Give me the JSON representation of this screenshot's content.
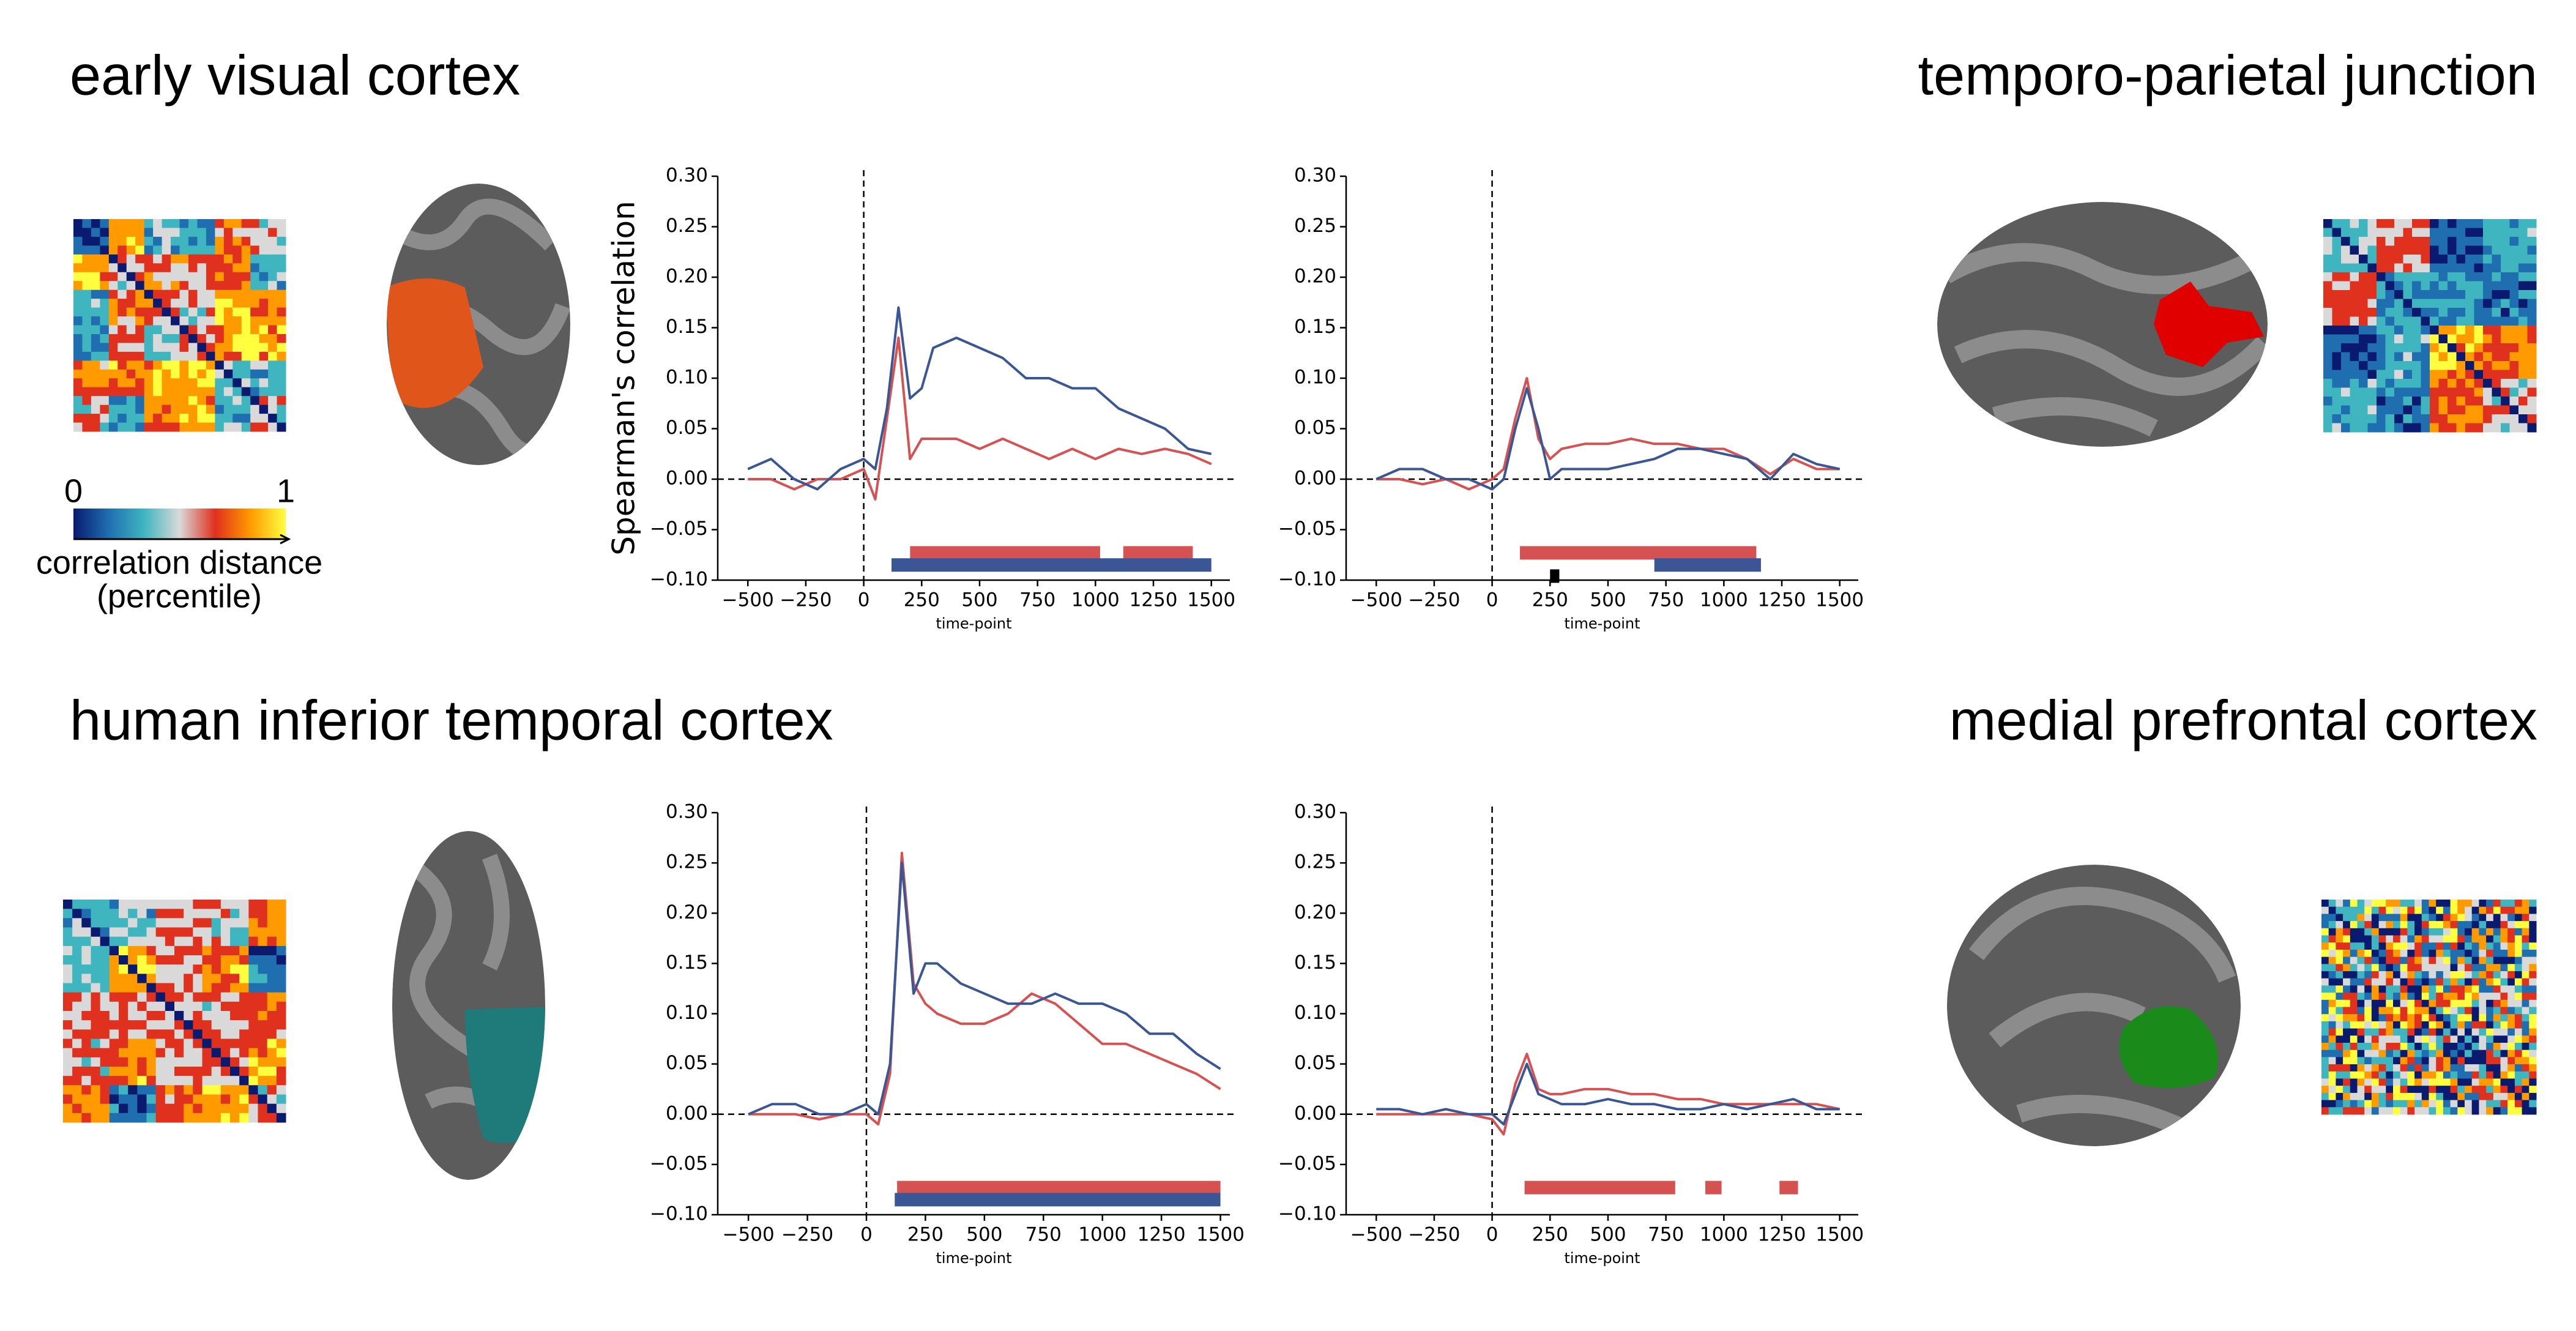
{
  "chart_data": [
    {
      "type": "line",
      "title": "early visual cortex",
      "y_label": "Spearman's correlation",
      "x_label": "time-point",
      "x": [
        -500,
        -400,
        -300,
        -200,
        -100,
        0,
        50,
        100,
        150,
        200,
        250,
        300,
        400,
        500,
        600,
        700,
        800,
        900,
        1000,
        1100,
        1200,
        1300,
        1400,
        1500
      ],
      "series": [
        {
          "color": "#d65252",
          "values": [
            0.0,
            0.0,
            -0.01,
            0.0,
            0.0,
            0.01,
            -0.02,
            0.06,
            0.14,
            0.02,
            0.04,
            0.04,
            0.04,
            0.03,
            0.04,
            0.03,
            0.02,
            0.03,
            0.02,
            0.03,
            0.025,
            0.03,
            0.025,
            0.015
          ]
        },
        {
          "color": "#3a5694",
          "values": [
            0.01,
            0.02,
            0.0,
            -0.01,
            0.01,
            0.02,
            0.01,
            0.07,
            0.17,
            0.08,
            0.09,
            0.13,
            0.14,
            0.13,
            0.12,
            0.1,
            0.1,
            0.09,
            0.09,
            0.07,
            0.06,
            0.05,
            0.03,
            0.025
          ]
        }
      ],
      "significance": [
        {
          "color": "#d65252",
          "intervals": [
            [
              200,
              1020
            ],
            [
              1120,
              1420
            ]
          ]
        },
        {
          "color": "#3a5694",
          "intervals": [
            [
              120,
              1500
            ]
          ]
        }
      ],
      "hline": 0,
      "vline": 0,
      "xlim": [
        -630,
        1580
      ],
      "ylim": [
        -0.1,
        0.3
      ],
      "xticks": [
        {
          "value": -500,
          "label": "−500"
        },
        {
          "value": -250,
          "label": "−250"
        },
        0,
        250,
        500,
        750,
        1000,
        1250,
        1500
      ],
      "yticks": [
        {
          "value": -0.1,
          "label": "−0.10"
        },
        {
          "value": -0.05,
          "label": "−0.05"
        },
        {
          "value": 0,
          "label": "0.00"
        },
        0.05,
        {
          "value": 0.1,
          "label": "0.10"
        },
        0.15,
        {
          "value": 0.2,
          "label": "0.20"
        },
        0.25,
        {
          "value": 0.3,
          "label": "0.30"
        }
      ]
    },
    {
      "type": "line",
      "title": "temporo-parietal junction",
      "x_label": "time-point",
      "x": [
        -500,
        -400,
        -300,
        -200,
        -100,
        0,
        50,
        100,
        150,
        200,
        250,
        300,
        400,
        500,
        600,
        700,
        800,
        900,
        1000,
        1100,
        1200,
        1300,
        1400,
        1500
      ],
      "series": [
        {
          "color": "#d65252",
          "values": [
            0.0,
            0.0,
            -0.005,
            0.0,
            -0.01,
            0.0,
            0.01,
            0.06,
            0.1,
            0.04,
            0.02,
            0.03,
            0.035,
            0.035,
            0.04,
            0.035,
            0.035,
            0.03,
            0.03,
            0.02,
            0.005,
            0.02,
            0.01,
            0.01
          ]
        },
        {
          "color": "#3a5694",
          "values": [
            0.0,
            0.01,
            0.01,
            0.0,
            0.0,
            -0.01,
            0.0,
            0.05,
            0.09,
            0.05,
            0.0,
            0.01,
            0.01,
            0.01,
            0.015,
            0.02,
            0.03,
            0.03,
            0.025,
            0.02,
            0.0,
            0.025,
            0.015,
            0.01
          ]
        }
      ],
      "significance": [
        {
          "color": "#d65252",
          "intervals": [
            [
              120,
              1140
            ]
          ]
        },
        {
          "color": "#3a5694",
          "intervals": [
            [
              700,
              1160
            ]
          ]
        },
        {
          "color": "#000000",
          "intervals": [
            [
              250,
              290
            ]
          ]
        }
      ],
      "hline": 0,
      "vline": 0,
      "xlim": [
        -630,
        1580
      ],
      "ylim": [
        -0.1,
        0.3
      ],
      "xticks": [
        {
          "value": -500,
          "label": "−500"
        },
        {
          "value": -250,
          "label": "−250"
        },
        0,
        250,
        500,
        750,
        1000,
        1250,
        1500
      ],
      "yticks": [
        {
          "value": -0.1,
          "label": "−0.10"
        },
        {
          "value": -0.05,
          "label": "−0.05"
        },
        {
          "value": 0,
          "label": "0.00"
        },
        0.05,
        {
          "value": 0.1,
          "label": "0.10"
        },
        0.15,
        {
          "value": 0.2,
          "label": "0.20"
        },
        0.25,
        {
          "value": 0.3,
          "label": "0.30"
        }
      ]
    },
    {
      "type": "line",
      "title": "human inferior temporal cortex",
      "x_label": "time-point",
      "x": [
        -500,
        -400,
        -300,
        -200,
        -100,
        0,
        50,
        100,
        150,
        200,
        250,
        300,
        400,
        500,
        600,
        700,
        800,
        900,
        1000,
        1100,
        1200,
        1300,
        1400,
        1500
      ],
      "series": [
        {
          "color": "#d65252",
          "values": [
            0.0,
            0.0,
            0.0,
            -0.005,
            0.0,
            0.0,
            -0.01,
            0.04,
            0.26,
            0.13,
            0.11,
            0.1,
            0.09,
            0.09,
            0.1,
            0.12,
            0.11,
            0.09,
            0.07,
            0.07,
            0.06,
            0.05,
            0.04,
            0.025
          ]
        },
        {
          "color": "#3a5694",
          "values": [
            0.0,
            0.01,
            0.01,
            0.0,
            0.0,
            0.01,
            0.0,
            0.05,
            0.25,
            0.12,
            0.15,
            0.15,
            0.13,
            0.12,
            0.11,
            0.11,
            0.12,
            0.11,
            0.11,
            0.1,
            0.08,
            0.08,
            0.06,
            0.045
          ]
        }
      ],
      "significance": [
        {
          "color": "#d65252",
          "intervals": [
            [
              130,
              1500
            ]
          ]
        },
        {
          "color": "#3a5694",
          "intervals": [
            [
              120,
              1500
            ]
          ]
        }
      ],
      "hline": 0,
      "vline": 0,
      "xlim": [
        -630,
        1540
      ],
      "ylim": [
        -0.1,
        0.3
      ],
      "xticks": [
        {
          "value": -500,
          "label": "−500"
        },
        {
          "value": -250,
          "label": "−250"
        },
        0,
        250,
        500,
        750,
        1000,
        1250,
        1500
      ],
      "yticks": [
        {
          "value": -0.1,
          "label": "−0.10"
        },
        {
          "value": -0.05,
          "label": "−0.05"
        },
        {
          "value": 0,
          "label": "0.00"
        },
        0.05,
        {
          "value": 0.1,
          "label": "0.10"
        },
        0.15,
        {
          "value": 0.2,
          "label": "0.20"
        },
        0.25,
        {
          "value": 0.3,
          "label": "0.30"
        }
      ]
    },
    {
      "type": "line",
      "title": "medial prefrontal cortex",
      "x_label": "time-point",
      "x": [
        -500,
        -400,
        -300,
        -200,
        -100,
        0,
        50,
        100,
        150,
        200,
        250,
        300,
        400,
        500,
        600,
        700,
        800,
        900,
        1000,
        1100,
        1200,
        1300,
        1400,
        1500
      ],
      "series": [
        {
          "color": "#d65252",
          "values": [
            0.0,
            0.0,
            0.0,
            0.0,
            0.0,
            -0.005,
            -0.02,
            0.03,
            0.06,
            0.025,
            0.02,
            0.02,
            0.025,
            0.025,
            0.02,
            0.02,
            0.015,
            0.015,
            0.01,
            0.01,
            0.01,
            0.01,
            0.01,
            0.005
          ]
        },
        {
          "color": "#3a5694",
          "values": [
            0.005,
            0.005,
            0.0,
            0.005,
            0.0,
            0.0,
            -0.01,
            0.02,
            0.05,
            0.02,
            0.015,
            0.01,
            0.01,
            0.015,
            0.01,
            0.01,
            0.005,
            0.005,
            0.01,
            0.005,
            0.01,
            0.015,
            0.005,
            0.005
          ]
        }
      ],
      "significance": [
        {
          "color": "#d65252",
          "intervals": [
            [
              140,
              790
            ],
            [
              920,
              990
            ],
            [
              1240,
              1320
            ]
          ]
        }
      ],
      "hline": 0,
      "vline": 0,
      "xlim": [
        -630,
        1580
      ],
      "ylim": [
        -0.1,
        0.3
      ],
      "xticks": [
        {
          "value": -500,
          "label": "−500"
        },
        {
          "value": -250,
          "label": "−250"
        },
        0,
        250,
        500,
        750,
        1000,
        1250,
        1500
      ],
      "yticks": [
        {
          "value": -0.1,
          "label": "−0.10"
        },
        {
          "value": -0.05,
          "label": "−0.05"
        },
        {
          "value": 0,
          "label": "0.00"
        },
        0.05,
        {
          "value": 0.1,
          "label": "0.10"
        },
        0.15,
        {
          "value": 0.2,
          "label": "0.20"
        },
        0.25,
        {
          "value": 0.3,
          "label": "0.30"
        }
      ]
    }
  ],
  "colorbar": {
    "ticks": [
      0,
      1
    ],
    "label": [
      "correlation distance",
      "(percentile)"
    ],
    "colors": [
      "#0a1a6e",
      "#1f6fb0",
      "#3fb5c0",
      "#d9d9d9",
      "#e0301e",
      "#ff9a00",
      "#ffff40"
    ]
  }
}
